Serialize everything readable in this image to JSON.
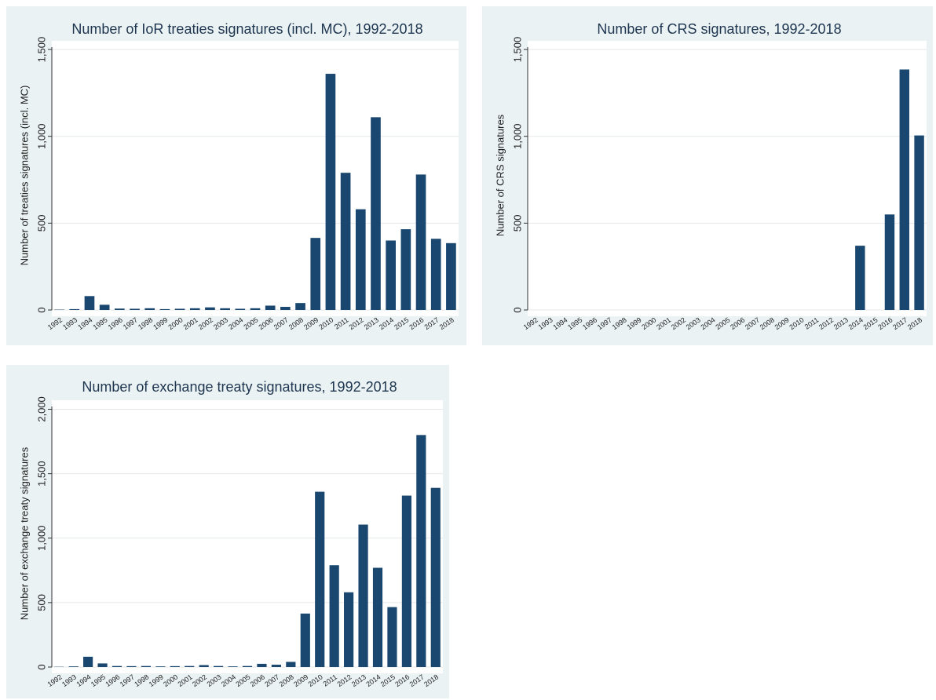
{
  "chart_data": [
    {
      "type": "bar",
      "title": "Number of IoR treaties signatures (incl. MC), 1992-2018",
      "ylabel": "Number of treaties signatures (incl. MC)",
      "categories": [
        "1992",
        "1993",
        "1994",
        "1995",
        "1996",
        "1997",
        "1998",
        "1999",
        "2000",
        "2001",
        "2002",
        "2003",
        "2004",
        "2005",
        "2006",
        "2007",
        "2008",
        "2009",
        "2010",
        "2011",
        "2012",
        "2013",
        "2014",
        "2015",
        "2016",
        "2017",
        "2018"
      ],
      "values": [
        2,
        5,
        80,
        30,
        8,
        7,
        10,
        5,
        7,
        10,
        15,
        10,
        7,
        10,
        25,
        18,
        40,
        415,
        1360,
        790,
        580,
        1110,
        400,
        465,
        780,
        410,
        385
      ],
      "color": "#1a476f",
      "ylim": [
        0,
        1550
      ],
      "yticks": [
        0,
        500,
        {
          "value": 1000,
          "label": "1,000"
        },
        {
          "value": 1500,
          "label": "1,500"
        }
      ],
      "grid": true
    },
    {
      "type": "bar",
      "title": "Number of CRS signatures, 1992-2018",
      "ylabel": "Number of CRS signatures",
      "categories": [
        "1992",
        "1993",
        "1994",
        "1995",
        "1996",
        "1997",
        "1998",
        "1999",
        "2000",
        "2001",
        "2002",
        "2003",
        "2004",
        "2005",
        "2006",
        "2007",
        "2008",
        "2009",
        "2010",
        "2011",
        "2012",
        "2013",
        "2014",
        "2015",
        "2016",
        "2017",
        "2018"
      ],
      "values": [
        0,
        0,
        0,
        0,
        0,
        0,
        0,
        0,
        0,
        0,
        0,
        0,
        0,
        0,
        0,
        0,
        0,
        0,
        0,
        0,
        0,
        0,
        370,
        0,
        550,
        1385,
        1005
      ],
      "color": "#1a476f",
      "ylim": [
        0,
        1550
      ],
      "yticks": [
        0,
        500,
        {
          "value": 1000,
          "label": "1,000"
        },
        {
          "value": 1500,
          "label": "1,500"
        }
      ],
      "grid": true
    },
    {
      "type": "bar",
      "title": "Number of exchange treaty signatures, 1992-2018",
      "ylabel": "Number of exchange treaty signatures",
      "categories": [
        "1992",
        "1993",
        "1994",
        "1995",
        "1996",
        "1997",
        "1998",
        "1999",
        "2000",
        "2001",
        "2002",
        "2003",
        "2004",
        "2005",
        "2006",
        "2007",
        "2008",
        "2009",
        "2010",
        "2011",
        "2012",
        "2013",
        "2014",
        "2015",
        "2016",
        "2017",
        "2018"
      ],
      "values": [
        2,
        5,
        80,
        28,
        8,
        7,
        8,
        5,
        7,
        8,
        15,
        8,
        5,
        8,
        25,
        18,
        40,
        415,
        1360,
        790,
        580,
        1105,
        770,
        465,
        1330,
        1800,
        1390
      ],
      "color": "#1a476f",
      "ylim": [
        0,
        2070
      ],
      "yticks": [
        0,
        500,
        {
          "value": 1000,
          "label": "1,000"
        },
        {
          "value": 1500,
          "label": "1,500"
        },
        {
          "value": 2000,
          "label": "2,000"
        }
      ],
      "grid": true
    }
  ]
}
